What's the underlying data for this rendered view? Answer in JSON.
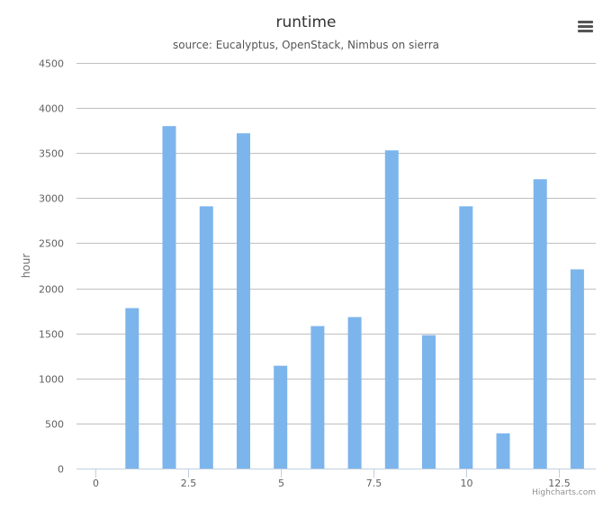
{
  "header": {
    "title": "runtime",
    "subtitle": "source: Eucalyptus, OpenStack, Nimbus on sierra"
  },
  "menu": {
    "icon": "hamburger-menu-icon"
  },
  "credits": {
    "text": "Highcharts.com"
  },
  "colors": {
    "bar": "#7cb5ec",
    "grid": "#c0c0c0",
    "axis": "#c0d0e0",
    "text": "#555555"
  },
  "chart_data": {
    "type": "bar",
    "title": "runtime",
    "subtitle": "source: Eucalyptus, OpenStack, Nimbus on sierra",
    "xlabel": "",
    "ylabel": "hour",
    "x": [
      1,
      2,
      3,
      4,
      5,
      6,
      7,
      8,
      9,
      10,
      11,
      12,
      13
    ],
    "values": [
      1780,
      3800,
      2910,
      3720,
      1140,
      1580,
      1680,
      3530,
      1480,
      2910,
      390,
      3210,
      2210
    ],
    "xlim": [
      -0.5,
      13.5
    ],
    "ylim": [
      0,
      4500
    ],
    "xticks": [
      "0",
      "2.5",
      "5",
      "7.5",
      "10",
      "12.5"
    ],
    "yticks": [
      "0",
      "500",
      "1000",
      "1500",
      "2000",
      "2500",
      "3000",
      "3500",
      "4000",
      "4500"
    ],
    "grid": true,
    "legend": false
  }
}
